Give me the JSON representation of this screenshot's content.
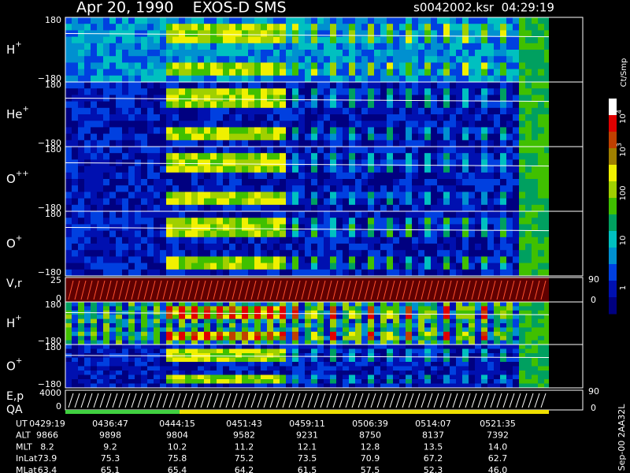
{
  "header": {
    "title": "Apr 20, 1990    EXOS-D SMS",
    "file": "s0042002.ksr  04:29:19"
  },
  "panels": [
    {
      "ion": "H",
      "charge": "+",
      "top": "180",
      "bottom": "−180"
    },
    {
      "ion": "He",
      "charge": "+",
      "top": "180",
      "bottom": "−180"
    },
    {
      "ion": "O",
      "charge": "++",
      "top": "180",
      "bottom": "−180"
    },
    {
      "ion": "O",
      "charge": "+",
      "top": "180",
      "bottom": "−180"
    },
    {
      "label": "V,r",
      "top": "25",
      "bottom": "0",
      "right_top": "90",
      "right_bottom": "0"
    },
    {
      "ion": "H",
      "charge": "+",
      "top": "180",
      "bottom": "−180"
    },
    {
      "ion": "O",
      "charge": "+",
      "top": "180",
      "bottom": "−180"
    },
    {
      "label": "E,p",
      "label2": "QA",
      "top": "4000",
      "bottom": "0",
      "right_top": "90",
      "right_bottom": "0"
    }
  ],
  "colorbar": {
    "unit": "Ct/Smp",
    "labels": [
      {
        "base": "10",
        "exp": "4"
      },
      {
        "base": "10",
        "exp": "3"
      },
      {
        "base": "100"
      },
      {
        "base": "10"
      },
      {
        "base": "1"
      }
    ]
  },
  "ephemeris": {
    "rows": [
      [
        "UT",
        "0429:19",
        "0436:47",
        "0444:15",
        "0451:43",
        "0459:11",
        "0506:39",
        "0514:07",
        "0521:35"
      ],
      [
        "ALT",
        "9866",
        "9898",
        "9804",
        "9582",
        "9231",
        "8750",
        "8137",
        "7392"
      ],
      [
        "MLT",
        "8.2",
        "9.2",
        "10.2",
        "11.2",
        "12.1",
        "12.8",
        "13.5",
        "14.0"
      ],
      [
        "InLat",
        "73.9",
        "75.3",
        "75.8",
        "75.2",
        "73.5",
        "70.9",
        "67.2",
        "62.7"
      ],
      [
        "MLat",
        "63.4",
        "65.1",
        "65.4",
        "64.2",
        "61.5",
        "57.5",
        "52.3",
        "46.0"
      ]
    ]
  },
  "footer": "Sep-00 2AA32L"
}
